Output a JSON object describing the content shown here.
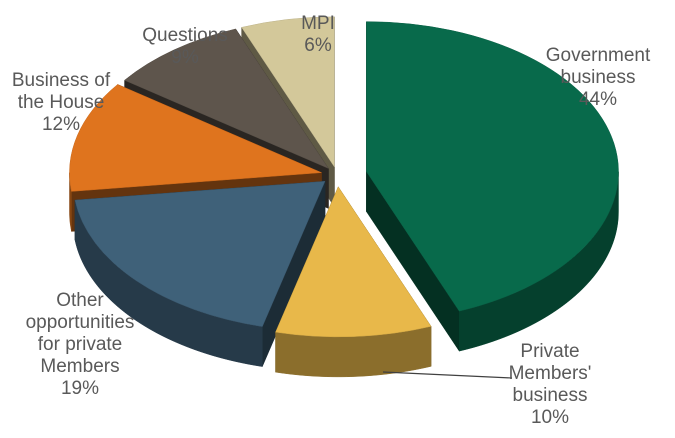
{
  "chart_data": {
    "type": "pie",
    "variant": "3d-exploded",
    "title": "",
    "slices": [
      {
        "label_lines": [
          "Government",
          "business"
        ],
        "value": 44,
        "pct": "44%",
        "color": "#086a4b"
      },
      {
        "label_lines": [
          "Private",
          "Members'",
          "business"
        ],
        "value": 10,
        "pct": "10%",
        "color": "#e8b84a"
      },
      {
        "label_lines": [
          "Other",
          "opportunities",
          "for private",
          "Members"
        ],
        "value": 19,
        "pct": "19%",
        "color": "#3f6179"
      },
      {
        "label_lines": [
          "Business of",
          "the House"
        ],
        "value": 12,
        "pct": "12%",
        "color": "#df741e"
      },
      {
        "label_lines": [
          "Questions"
        ],
        "value": 9,
        "pct": "9%",
        "color": "#5e554c"
      },
      {
        "label_lines": [
          "MPI"
        ],
        "value": 6,
        "pct": "6%",
        "color": "#d3c89a"
      }
    ],
    "legend": "none",
    "labels": "outside with percentage"
  }
}
